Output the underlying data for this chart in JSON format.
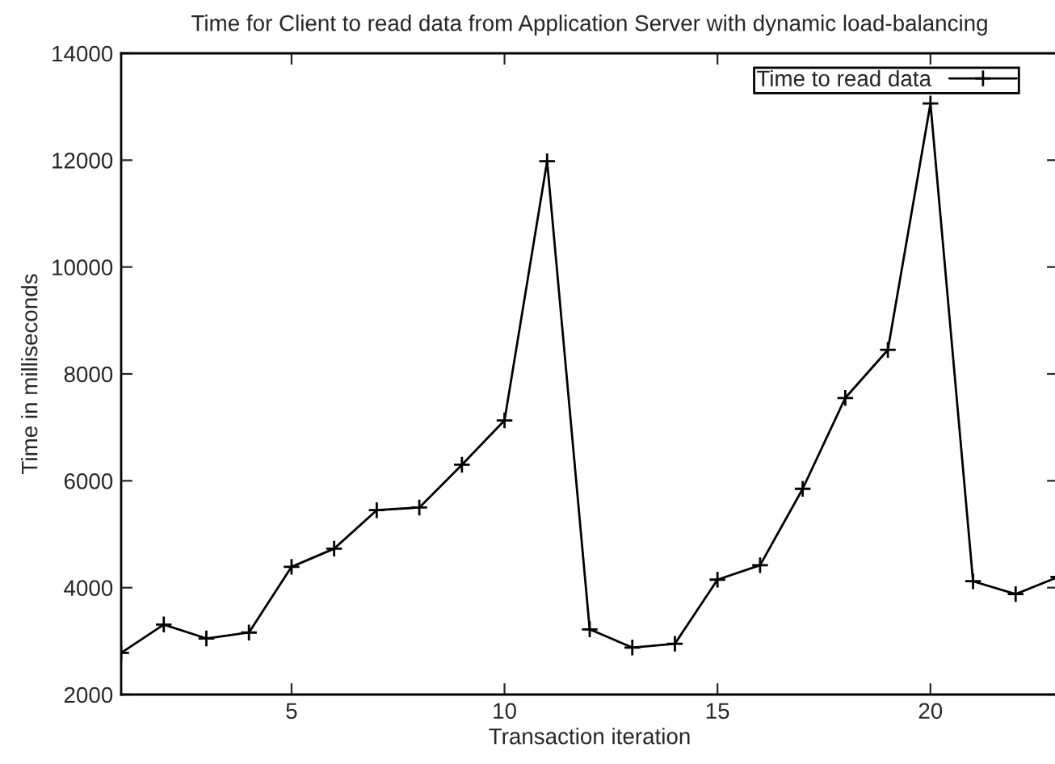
{
  "chart_data": {
    "type": "line",
    "title": "Time for Client to read data from Application Server with dynamic load-balancing",
    "xlabel": "Transaction iteration",
    "ylabel": "Time in milliseconds",
    "series": [
      {
        "name": "Time to read data",
        "color": "#000000",
        "x": [
          1,
          2,
          3,
          4,
          5,
          6,
          7,
          8,
          9,
          10,
          11,
          12,
          13,
          14,
          15,
          16,
          17,
          18,
          19,
          20,
          21,
          22,
          23
        ],
        "values": [
          2780,
          3310,
          3050,
          3160,
          4390,
          4730,
          5450,
          5500,
          6300,
          7130,
          11980,
          3220,
          2880,
          2950,
          4150,
          4420,
          5850,
          7550,
          8450,
          13060,
          4120,
          3880,
          4200
        ]
      }
    ],
    "xlim": [
      1,
      23
    ],
    "xticks": [
      5,
      10,
      15,
      20
    ],
    "ylim": [
      2000,
      14000
    ],
    "yticks": [
      2000,
      4000,
      6000,
      8000,
      10000,
      12000,
      14000
    ],
    "grid": false,
    "legend": "top right",
    "marker": "cross",
    "line_style": "solid"
  }
}
